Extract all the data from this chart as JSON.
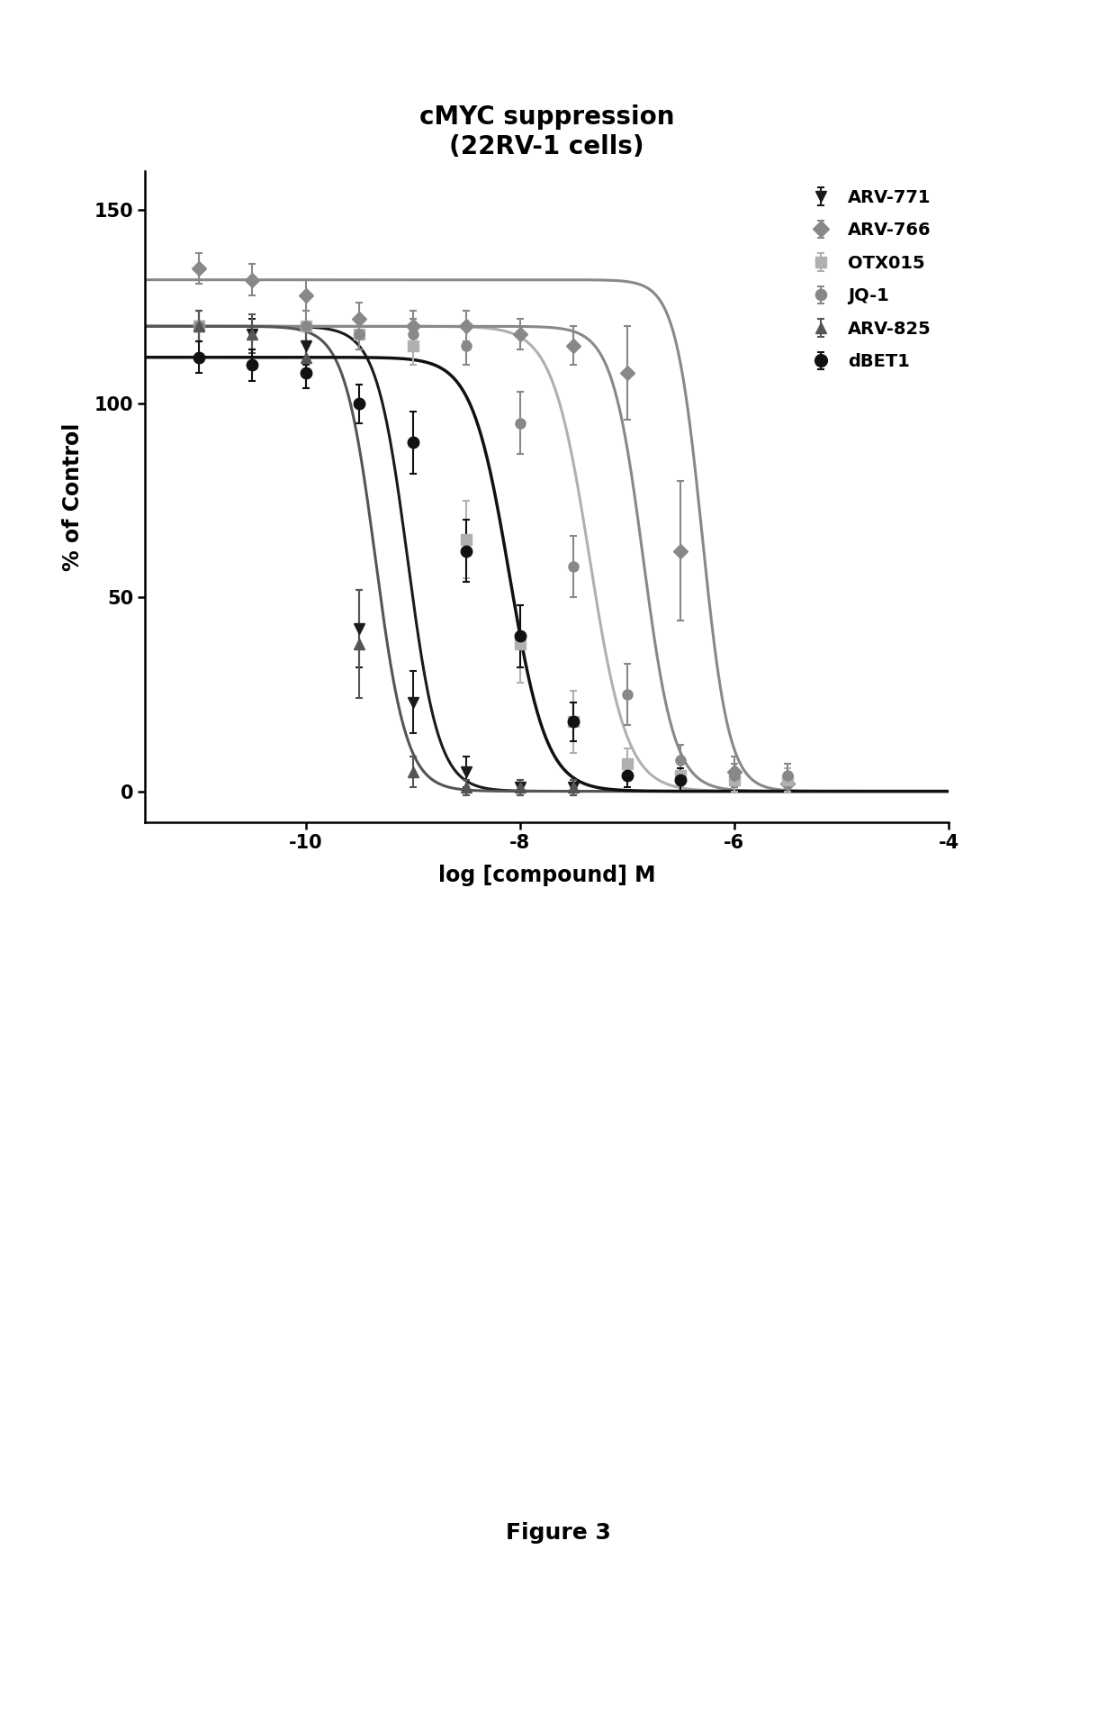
{
  "title": "cMYC suppression\n(22RV-1 cells)",
  "xlabel": "log [compound] M",
  "ylabel": "% of Control",
  "xlim": [
    -11.5,
    -4.0
  ],
  "ylim": [
    -8,
    160
  ],
  "xticks": [
    -10,
    -8,
    -6,
    -4
  ],
  "yticks": [
    0,
    50,
    100,
    150
  ],
  "figure_caption": "Figure 3",
  "series": [
    {
      "label": "ARV-771",
      "color": "#1a1a1a",
      "marker": "v",
      "markersize": 8,
      "linewidth": 2.2,
      "ec50_log": -9.05,
      "bottom": 0,
      "top": 120,
      "hill": 3.0,
      "x_data": [
        -11.0,
        -10.5,
        -10.0,
        -9.5,
        -9.0,
        -8.5,
        -8.0,
        -7.5
      ],
      "y_data": [
        120,
        118,
        115,
        42,
        23,
        5,
        1,
        1
      ],
      "y_err": [
        4,
        4,
        5,
        10,
        8,
        4,
        2,
        2
      ]
    },
    {
      "label": "ARV-766",
      "color": "#888888",
      "marker": "D",
      "markersize": 8,
      "linewidth": 2.2,
      "ec50_log": -6.3,
      "bottom": 0,
      "top": 132,
      "hill": 3.5,
      "x_data": [
        -11.0,
        -10.5,
        -10.0,
        -9.5,
        -9.0,
        -8.5,
        -8.0,
        -7.5,
        -7.0,
        -6.5,
        -6.0,
        -5.5
      ],
      "y_data": [
        135,
        132,
        128,
        122,
        120,
        120,
        118,
        115,
        108,
        62,
        5,
        2
      ],
      "y_err": [
        4,
        4,
        4,
        4,
        4,
        4,
        4,
        5,
        12,
        18,
        4,
        2
      ]
    },
    {
      "label": "OTX015",
      "color": "#b0b0b0",
      "marker": "s",
      "markersize": 8,
      "linewidth": 2.2,
      "ec50_log": -7.35,
      "bottom": 0,
      "top": 120,
      "hill": 2.5,
      "x_data": [
        -11.0,
        -10.0,
        -9.5,
        -9.0,
        -8.5,
        -8.0,
        -7.5,
        -7.0,
        -6.5,
        -6.0,
        -5.5
      ],
      "y_data": [
        120,
        120,
        118,
        115,
        65,
        38,
        18,
        7,
        4,
        3,
        3
      ],
      "y_err": [
        4,
        4,
        4,
        5,
        10,
        10,
        8,
        4,
        3,
        3,
        3
      ]
    },
    {
      "label": "JQ-1",
      "color": "#888888",
      "marker": "o",
      "markersize": 8,
      "linewidth": 2.2,
      "ec50_log": -6.85,
      "bottom": 0,
      "top": 120,
      "hill": 3.0,
      "x_data": [
        -11.0,
        -10.0,
        -9.5,
        -9.0,
        -8.5,
        -8.0,
        -7.5,
        -7.0,
        -6.5,
        -6.0,
        -5.5
      ],
      "y_data": [
        120,
        120,
        118,
        118,
        115,
        95,
        58,
        25,
        8,
        4,
        4
      ],
      "y_err": [
        4,
        4,
        4,
        4,
        5,
        8,
        8,
        8,
        4,
        3,
        3
      ]
    },
    {
      "label": "ARV-825",
      "color": "#555555",
      "marker": "^",
      "markersize": 8,
      "linewidth": 2.2,
      "ec50_log": -9.35,
      "bottom": 0,
      "top": 120,
      "hill": 3.0,
      "x_data": [
        -11.0,
        -10.5,
        -10.0,
        -9.5,
        -9.0,
        -8.5,
        -8.0,
        -7.5
      ],
      "y_data": [
        120,
        118,
        112,
        38,
        5,
        1,
        1,
        1
      ],
      "y_err": [
        4,
        5,
        8,
        14,
        4,
        2,
        2,
        2
      ]
    },
    {
      "label": "dBET1",
      "color": "#111111",
      "marker": "o",
      "markersize": 9,
      "linewidth": 2.5,
      "ec50_log": -8.1,
      "bottom": 0,
      "top": 112,
      "hill": 2.5,
      "x_data": [
        -11.0,
        -10.5,
        -10.0,
        -9.5,
        -9.0,
        -8.5,
        -8.0,
        -7.5,
        -7.0,
        -6.5
      ],
      "y_data": [
        112,
        110,
        108,
        100,
        90,
        62,
        40,
        18,
        4,
        3
      ],
      "y_err": [
        4,
        4,
        4,
        5,
        8,
        8,
        8,
        5,
        3,
        3
      ]
    }
  ],
  "background_color": "#ffffff",
  "title_fontsize": 20,
  "label_fontsize": 17,
  "tick_fontsize": 15,
  "legend_fontsize": 14
}
